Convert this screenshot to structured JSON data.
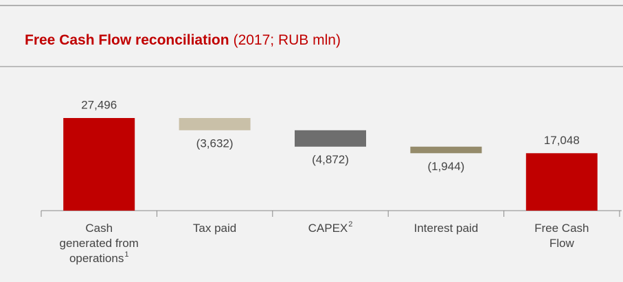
{
  "chart_data": {
    "type": "waterfall",
    "title": "Free Cash Flow reconciliation",
    "subtitle": "(2017; RUB mln)",
    "categories": [
      "Cash generated from operations",
      "Tax paid",
      "CAPEX",
      "Interest paid",
      "Free Cash Flow"
    ],
    "category_notes": [
      "1",
      null,
      "2",
      null,
      null
    ],
    "measure": [
      "absolute",
      "relative",
      "relative",
      "relative",
      "total"
    ],
    "values": [
      27496,
      -3632,
      -4872,
      -1944,
      17048
    ],
    "value_labels": [
      "27,496",
      "(3,632)",
      "(4,872)",
      "(1,944)",
      "17,048"
    ],
    "colors": [
      "#c00000",
      "#c9c0a8",
      "#6e6e6e",
      "#958b6b",
      "#c00000"
    ]
  }
}
